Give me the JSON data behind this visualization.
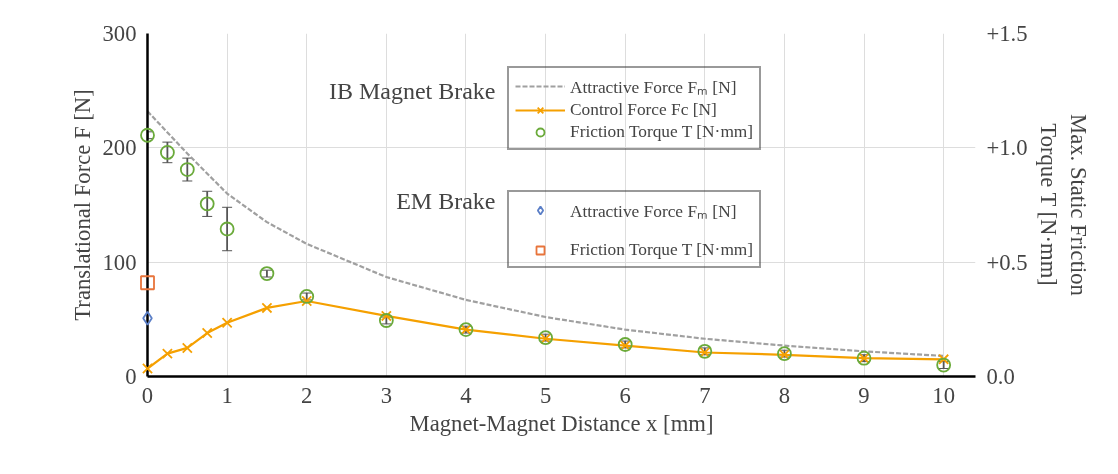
{
  "chart_data": {
    "type": "line",
    "xlabel": "Magnet-Magnet Distance x [mm]",
    "ylabel": "Translational Force F [N]",
    "y2label": "Max. Static Friction\nTorque T [N·mm]",
    "annotations": [
      "IB Magnet Brake",
      "EM Brake"
    ],
    "xlim": [
      0,
      10.4
    ],
    "xticks": [
      0,
      1,
      2,
      3,
      4,
      5,
      6,
      7,
      8,
      9,
      10
    ],
    "ylim": [
      0,
      300
    ],
    "yticks": [
      0,
      100,
      200,
      300
    ],
    "y2lim": [
      0,
      1.5
    ],
    "y2ticks": [
      {
        "value": 0,
        "label": "0.0"
      },
      {
        "value": 0.5,
        "label": "+0.5"
      },
      {
        "value": 1,
        "label": "+1.0"
      },
      {
        "value": 1.5,
        "label": "+1.5"
      }
    ],
    "grid": true,
    "legend": "top right",
    "series": [
      {
        "name": "Attractive Force Fₘ [N]",
        "line_style": "dashed",
        "marker": "none",
        "color": "#a0a0a0",
        "x": [
          0,
          0.5,
          1,
          1.5,
          2,
          3,
          4,
          5,
          6,
          7,
          8,
          9,
          10
        ],
        "values": [
          232,
          195,
          160,
          135,
          116,
          87,
          67,
          52,
          41,
          33,
          27,
          22,
          18
        ]
      },
      {
        "name": "Control Force Fc [N]",
        "line_style": "solid",
        "marker": "cross",
        "color": "#f5a000",
        "x": [
          0,
          0.25,
          0.5,
          0.75,
          1,
          1.5,
          2,
          3,
          4,
          5,
          6,
          7,
          8,
          9,
          10
        ],
        "values": [
          7,
          20,
          25,
          38,
          47,
          60,
          66,
          53,
          41,
          33,
          27,
          21,
          19,
          16,
          15
        ]
      },
      {
        "name": "Friction Torque T [N·mm]",
        "type": "scatter",
        "axis": "y2",
        "marker": "circle",
        "color": "#6aaa3a",
        "x": [
          0,
          0.25,
          0.5,
          0.75,
          1,
          1.5,
          2,
          3,
          4,
          5,
          6,
          7,
          8,
          9,
          10
        ],
        "values": [
          1.055,
          0.98,
          0.905,
          0.755,
          0.645,
          0.45,
          0.35,
          0.245,
          0.205,
          0.17,
          0.14,
          0.11,
          0.1,
          0.08,
          0.05
        ],
        "errors": [
          0.015,
          0.045,
          0.05,
          0.055,
          0.095,
          0.015,
          0.015,
          0.015,
          0.015,
          0.015,
          0.015,
          0.015,
          0.015,
          0.015,
          0.015
        ]
      },
      {
        "name": "Attractive Force Fₘ [N]",
        "type": "scatter",
        "marker": "diamond",
        "color": "#5b7fc7",
        "x": [
          0
        ],
        "values": [
          51
        ]
      },
      {
        "name": "Friction Torque T [N·mm]",
        "type": "scatter",
        "axis": "y2",
        "marker": "square",
        "color": "#e8743b",
        "x": [
          0
        ],
        "values": [
          0.41
        ]
      }
    ]
  }
}
